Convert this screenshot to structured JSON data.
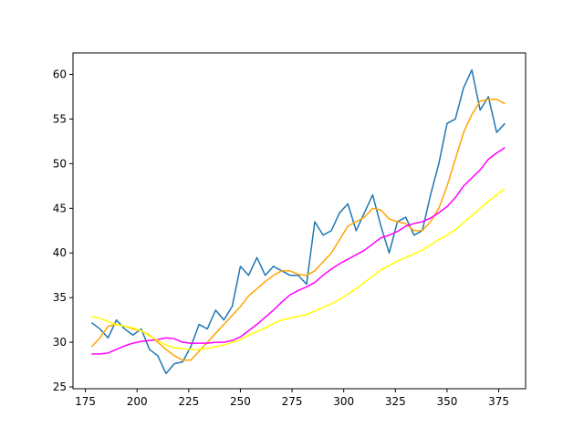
{
  "chart_data": {
    "type": "line",
    "x": [
      178,
      182,
      186,
      190,
      194,
      198,
      202,
      206,
      210,
      214,
      218,
      222,
      226,
      230,
      234,
      238,
      242,
      246,
      250,
      254,
      258,
      262,
      266,
      270,
      274,
      278,
      282,
      286,
      290,
      294,
      298,
      302,
      306,
      310,
      314,
      318,
      322,
      326,
      330,
      334,
      338,
      342,
      346,
      350,
      354,
      358,
      362,
      366,
      370,
      374,
      378
    ],
    "series": [
      {
        "color": "#1f77b4",
        "values": [
          32.2,
          31.5,
          30.5,
          32.5,
          31.5,
          30.8,
          31.5,
          29.2,
          28.5,
          26.5,
          27.6,
          27.8,
          29.5,
          32,
          31.5,
          33.6,
          32.5,
          34,
          38.5,
          37.5,
          39.5,
          37.5,
          38.5,
          38,
          37.5,
          37.5,
          36.5,
          43.5,
          42,
          42.5,
          44.5,
          45.5,
          42.5,
          44.5,
          46.5,
          43,
          40,
          43.5,
          44,
          42,
          42.5,
          46.5,
          50,
          54.5,
          55,
          58.5,
          60.5,
          56,
          57.5,
          53.5,
          54.5
        ]
      },
      {
        "color": "#ffa500",
        "values": [
          29.5,
          30.5,
          31.8,
          32,
          31.8,
          31.5,
          31.3,
          30.8,
          30,
          29.2,
          28.5,
          28,
          28,
          29,
          30,
          31,
          32,
          33,
          34,
          35.2,
          36,
          36.8,
          37.5,
          38,
          38,
          37.6,
          37.5,
          38,
          39,
          40,
          41.5,
          43,
          43.5,
          44,
          45,
          44.8,
          43.8,
          43.5,
          43.3,
          42.5,
          42.5,
          43.5,
          45,
          47.5,
          50.5,
          53.5,
          55.5,
          57,
          57.2,
          57.2,
          56.7
        ]
      },
      {
        "color": "#ff00ff",
        "values": [
          28.7,
          28.7,
          28.8,
          29.2,
          29.6,
          29.9,
          30.1,
          30.2,
          30.3,
          30.5,
          30.4,
          30,
          29.9,
          29.9,
          29.9,
          30,
          30,
          30.2,
          30.6,
          31.3,
          32,
          32.8,
          33.6,
          34.5,
          35.3,
          35.8,
          36.2,
          36.7,
          37.5,
          38.2,
          38.8,
          39.3,
          39.8,
          40.3,
          41,
          41.7,
          42,
          42.4,
          43,
          43.3,
          43.5,
          43.9,
          44.5,
          45.2,
          46.2,
          47.5,
          48.4,
          49.3,
          50.5,
          51.2,
          51.8
        ]
      },
      {
        "color": "#ffff00",
        "values": [
          32.9,
          32.7,
          32.3,
          32,
          31.8,
          31.6,
          31.3,
          30.7,
          30.2,
          29.7,
          29.4,
          29.3,
          29.2,
          29.2,
          29.3,
          29.5,
          29.7,
          30,
          30.3,
          30.8,
          31.2,
          31.6,
          32.1,
          32.5,
          32.7,
          32.9,
          33.1,
          33.5,
          33.9,
          34.3,
          34.8,
          35.4,
          36,
          36.7,
          37.4,
          38.1,
          38.6,
          39.1,
          39.5,
          39.9,
          40.3,
          40.9,
          41.5,
          42,
          42.6,
          43.4,
          44.2,
          45,
          45.8,
          46.5,
          47.2
        ]
      }
    ],
    "xlim": [
      169,
      388
    ],
    "xticks": [
      175,
      200,
      225,
      250,
      275,
      300,
      325,
      350,
      375
    ],
    "ylim": [
      24.8,
      62.4
    ],
    "yticks": [
      25,
      30,
      35,
      40,
      45,
      50,
      55,
      60
    ]
  }
}
